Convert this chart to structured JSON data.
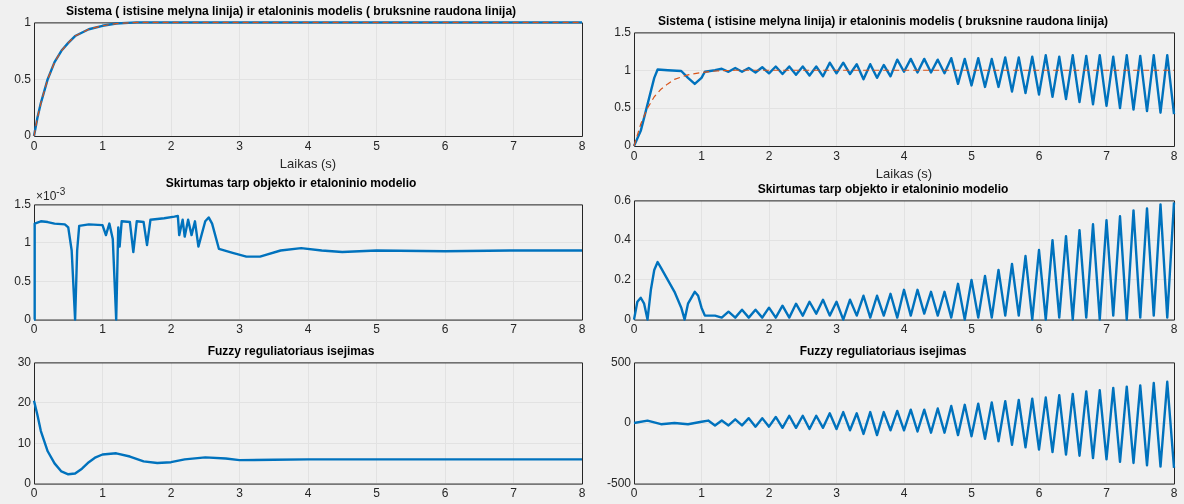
{
  "chart_data": [
    {
      "type": "line",
      "title": "Sistema ( istisine melyna linija) ir etaloninis modelis ( bruksnine raudona linija)",
      "xlabel": "Laikas (s)",
      "xlim": [
        0,
        8
      ],
      "xticks": [
        0,
        1,
        2,
        3,
        4,
        5,
        6,
        7,
        8
      ],
      "ylim": [
        0,
        1
      ],
      "yticks": [
        0,
        0.5,
        1
      ],
      "grid": true,
      "marker": "none",
      "series": [
        {
          "color": "#0072bd",
          "line_style": "solid",
          "x": [
            0,
            0.05,
            0.1,
            0.2,
            0.3,
            0.4,
            0.5,
            0.6,
            0.8,
            1,
            1.2,
            1.5,
            2,
            8
          ],
          "values": [
            0,
            0.16,
            0.29,
            0.5,
            0.65,
            0.75,
            0.82,
            0.88,
            0.94,
            0.97,
            0.99,
            1,
            1,
            1
          ]
        },
        {
          "color": "#d95319",
          "line_style": "dashed",
          "x": [
            0,
            0.05,
            0.1,
            0.2,
            0.3,
            0.4,
            0.5,
            0.6,
            0.8,
            1,
            1.2,
            1.5,
            2,
            8
          ],
          "values": [
            0,
            0.16,
            0.29,
            0.5,
            0.65,
            0.75,
            0.82,
            0.88,
            0.94,
            0.97,
            0.99,
            1,
            1,
            1
          ]
        }
      ]
    },
    {
      "type": "line",
      "title": "Sistema ( istisine melyna linija) ir etaloninis modelis ( bruksnine raudona linija)",
      "xlabel": "Laikas (s)",
      "xlim": [
        0,
        8
      ],
      "xticks": [
        0,
        1,
        2,
        3,
        4,
        5,
        6,
        7,
        8
      ],
      "ylim": [
        0,
        1.5
      ],
      "yticks": [
        0,
        0.5,
        1,
        1.5
      ],
      "grid": true,
      "marker": "none",
      "series": [
        {
          "color": "#0072bd",
          "line_style": "solid",
          "x": [
            0,
            0.1,
            0.2,
            0.3,
            0.35,
            0.5,
            0.7,
            0.8,
            0.9,
            1,
            1.05,
            1.2,
            1.3,
            1.4,
            1.5,
            1.6,
            1.7,
            1.8,
            1.9,
            2,
            2.1,
            2.2,
            2.3,
            2.4,
            2.5,
            2.6,
            2.7,
            2.8,
            2.9,
            3,
            3.1,
            3.2,
            3.3,
            3.4,
            3.5,
            3.6,
            3.7,
            3.8,
            3.9,
            4,
            4.1,
            4.2,
            4.3,
            4.4,
            4.5,
            4.6,
            4.7,
            4.8,
            4.9,
            5,
            5.1,
            5.2,
            5.3,
            5.4,
            5.5,
            5.6,
            5.7,
            5.8,
            5.9,
            6,
            6.1,
            6.2,
            6.3,
            6.4,
            6.5,
            6.6,
            6.7,
            6.8,
            6.9,
            7,
            7.1,
            7.2,
            7.3,
            7.4,
            7.5,
            7.6,
            7.7,
            7.8,
            7.9,
            8
          ],
          "values": [
            0,
            0.2,
            0.55,
            0.9,
            1.01,
            1,
            0.99,
            0.9,
            0.82,
            0.9,
            0.98,
            1,
            1.02,
            0.98,
            1.03,
            0.98,
            1.03,
            0.97,
            1.04,
            0.96,
            1.05,
            0.95,
            1.05,
            0.94,
            1.05,
            0.93,
            1.05,
            0.92,
            1.1,
            0.96,
            1.1,
            0.95,
            1.08,
            0.88,
            1.08,
            0.9,
            1.07,
            0.92,
            1.14,
            0.98,
            1.15,
            0.97,
            1.15,
            0.97,
            1.14,
            0.96,
            1.16,
            0.82,
            1.15,
            0.8,
            1.16,
            0.78,
            1.15,
            0.78,
            1.17,
            0.72,
            1.17,
            0.7,
            1.18,
            0.68,
            1.2,
            0.65,
            1.18,
            0.62,
            1.2,
            0.58,
            1.19,
            0.55,
            1.2,
            0.53,
            1.18,
            0.5,
            1.2,
            0.48,
            1.19,
            0.46,
            1.2,
            0.44,
            1.2,
            0.42
          ]
        },
        {
          "color": "#d95319",
          "line_style": "dashed",
          "x": [
            0,
            0.1,
            0.2,
            0.3,
            0.4,
            0.5,
            0.6,
            0.8,
            1,
            1.2,
            1.5,
            2,
            8
          ],
          "values": [
            0,
            0.29,
            0.5,
            0.65,
            0.75,
            0.82,
            0.88,
            0.94,
            0.97,
            0.99,
            1,
            1,
            1
          ]
        }
      ]
    },
    {
      "type": "line",
      "title": "Skirtumas tarp objekto ir etaloninio modelio",
      "annotations": [
        "×10$^{-3}$"
      ],
      "xlim": [
        0,
        8
      ],
      "xticks": [
        0,
        1,
        2,
        3,
        4,
        5,
        6,
        7,
        8
      ],
      "ylim": [
        0,
        1.5
      ],
      "yticks": [
        0,
        0.5,
        1,
        1.5
      ],
      "grid": true,
      "marker": "none",
      "series": [
        {
          "color": "#0072bd",
          "line_style": "solid",
          "x": [
            0,
            0.01,
            0.1,
            0.2,
            0.3,
            0.45,
            0.5,
            0.55,
            0.6,
            0.63,
            0.66,
            0.8,
            1,
            1.05,
            1.1,
            1.15,
            1.2,
            1.23,
            1.25,
            1.28,
            1.4,
            1.45,
            1.5,
            1.6,
            1.65,
            1.7,
            1.9,
            2.05,
            2.1,
            2.12,
            2.17,
            2.2,
            2.25,
            2.3,
            2.35,
            2.4,
            2.5,
            2.55,
            2.6,
            2.7,
            2.9,
            3.1,
            3.3,
            3.6,
            3.9,
            4.2,
            4.5,
            5,
            6,
            7,
            8
          ],
          "values": [
            0,
            1.25,
            1.28,
            1.27,
            1.25,
            1.24,
            1.2,
            0.9,
            0,
            0.9,
            1.22,
            1.24,
            1.23,
            1.1,
            1.25,
            1.05,
            0,
            1.2,
            0.95,
            1.28,
            1.27,
            0.88,
            1.28,
            1.27,
            0.97,
            1.3,
            1.32,
            1.34,
            1.35,
            1.1,
            1.3,
            1.08,
            1.3,
            1.1,
            1.28,
            0.95,
            1.28,
            1.33,
            1.25,
            0.92,
            0.87,
            0.82,
            0.82,
            0.9,
            0.93,
            0.9,
            0.88,
            0.9,
            0.89,
            0.9,
            0.9
          ]
        }
      ]
    },
    {
      "type": "line",
      "title": "Skirtumas tarp objekto ir etaloninio modelio",
      "xlim": [
        0,
        8
      ],
      "xticks": [
        0,
        1,
        2,
        3,
        4,
        5,
        6,
        7,
        8
      ],
      "ylim": [
        0,
        0.6
      ],
      "yticks": [
        0,
        0.2,
        0.4,
        0.6
      ],
      "grid": true,
      "marker": "none",
      "series": [
        {
          "color": "#0072bd",
          "line_style": "solid",
          "x": [
            0,
            0.05,
            0.1,
            0.15,
            0.2,
            0.25,
            0.3,
            0.35,
            0.4,
            0.5,
            0.6,
            0.7,
            0.75,
            0.8,
            0.9,
            0.95,
            1,
            1.05,
            1.1,
            1.2,
            1.3,
            1.4,
            1.5,
            1.6,
            1.7,
            1.8,
            1.9,
            2,
            2.1,
            2.2,
            2.3,
            2.4,
            2.5,
            2.6,
            2.7,
            2.8,
            2.9,
            3,
            3.1,
            3.2,
            3.3,
            3.4,
            3.5,
            3.6,
            3.7,
            3.8,
            3.9,
            4,
            4.1,
            4.2,
            4.3,
            4.4,
            4.5,
            4.6,
            4.7,
            4.8,
            4.9,
            5,
            5.1,
            5.2,
            5.3,
            5.4,
            5.5,
            5.6,
            5.7,
            5.8,
            5.9,
            6,
            6.1,
            6.2,
            6.3,
            6.4,
            6.5,
            6.6,
            6.7,
            6.8,
            6.9,
            7,
            7.1,
            7.2,
            7.3,
            7.4,
            7.5,
            7.6,
            7.7,
            7.8,
            7.9,
            8
          ],
          "values": [
            0,
            0.09,
            0.11,
            0.08,
            0,
            0.15,
            0.25,
            0.29,
            0.26,
            0.2,
            0.14,
            0.06,
            0,
            0.08,
            0.14,
            0.12,
            0.06,
            0.02,
            0.02,
            0.02,
            0.01,
            0.04,
            0.01,
            0.05,
            0.01,
            0.05,
            0.01,
            0.06,
            0.01,
            0.07,
            0.01,
            0.08,
            0.02,
            0.09,
            0.03,
            0.1,
            0.02,
            0.09,
            0,
            0.1,
            0.02,
            0.12,
            0.01,
            0.12,
            0.02,
            0.13,
            0.01,
            0.15,
            0.02,
            0.15,
            0.03,
            0.14,
            0.02,
            0.14,
            0.01,
            0.18,
            0,
            0.2,
            0.01,
            0.22,
            0.01,
            0.25,
            0.02,
            0.28,
            0.02,
            0.32,
            0,
            0.35,
            0,
            0.4,
            0.01,
            0.42,
            0,
            0.45,
            0.01,
            0.48,
            0,
            0.5,
            0.02,
            0.52,
            0,
            0.55,
            0.01,
            0.56,
            0.02,
            0.58,
            0.01,
            0.59
          ]
        }
      ]
    },
    {
      "type": "line",
      "title": "Fuzzy reguliatoriaus isejimas",
      "xlim": [
        0,
        8
      ],
      "xticks": [
        0,
        1,
        2,
        3,
        4,
        5,
        6,
        7,
        8
      ],
      "ylim": [
        0,
        30
      ],
      "yticks": [
        0,
        10,
        20,
        30
      ],
      "grid": true,
      "marker": "none",
      "series": [
        {
          "color": "#0072bd",
          "line_style": "solid",
          "x": [
            0,
            0.05,
            0.1,
            0.2,
            0.3,
            0.4,
            0.5,
            0.6,
            0.7,
            0.8,
            0.9,
            1,
            1.2,
            1.4,
            1.6,
            1.8,
            2,
            2.2,
            2.5,
            2.8,
            3,
            3.5,
            4,
            8
          ],
          "values": [
            20.5,
            17,
            13,
            8,
            5,
            3,
            2.3,
            2.5,
            3.7,
            5.3,
            6.5,
            7.2,
            7.5,
            6.7,
            5.5,
            5.1,
            5.3,
            6,
            6.5,
            6.2,
            5.8,
            5.9,
            6,
            6
          ]
        }
      ]
    },
    {
      "type": "line",
      "title": "Fuzzy reguliatoriaus isejimas",
      "xlim": [
        0,
        8
      ],
      "xticks": [
        0,
        1,
        2,
        3,
        4,
        5,
        6,
        7,
        8
      ],
      "ylim": [
        -500,
        500
      ],
      "yticks": [
        -500,
        0,
        500
      ],
      "grid": true,
      "marker": "none",
      "series": [
        {
          "color": "#0072bd",
          "line_style": "solid",
          "x": [
            0,
            0.2,
            0.4,
            0.6,
            0.8,
            1,
            1.1,
            1.2,
            1.3,
            1.4,
            1.5,
            1.6,
            1.7,
            1.8,
            1.9,
            2,
            2.1,
            2.2,
            2.3,
            2.4,
            2.5,
            2.6,
            2.7,
            2.8,
            2.9,
            3,
            3.1,
            3.2,
            3.3,
            3.4,
            3.5,
            3.6,
            3.7,
            3.8,
            3.9,
            4,
            4.1,
            4.2,
            4.3,
            4.4,
            4.5,
            4.6,
            4.7,
            4.8,
            4.9,
            5,
            5.1,
            5.2,
            5.3,
            5.4,
            5.5,
            5.6,
            5.7,
            5.8,
            5.9,
            6,
            6.1,
            6.2,
            6.3,
            6.4,
            6.5,
            6.6,
            6.7,
            6.8,
            6.9,
            7,
            7.1,
            7.2,
            7.3,
            7.4,
            7.5,
            7.6,
            7.7,
            7.8,
            7.9,
            8
          ],
          "values": [
            0,
            20,
            -10,
            0,
            -10,
            10,
            20,
            -20,
            20,
            -20,
            30,
            -20,
            40,
            -30,
            40,
            -30,
            50,
            -40,
            60,
            -40,
            60,
            -50,
            60,
            -40,
            80,
            -50,
            90,
            -60,
            80,
            -90,
            90,
            -100,
            90,
            -60,
            100,
            -60,
            110,
            -70,
            110,
            -80,
            120,
            -80,
            140,
            -100,
            150,
            -110,
            160,
            -130,
            170,
            -150,
            180,
            -180,
            190,
            -200,
            200,
            -220,
            210,
            -240,
            230,
            -260,
            240,
            -270,
            260,
            -290,
            270,
            -300,
            290,
            -320,
            300,
            -330,
            310,
            -350,
            330,
            -360,
            340,
            -370
          ]
        }
      ]
    }
  ]
}
